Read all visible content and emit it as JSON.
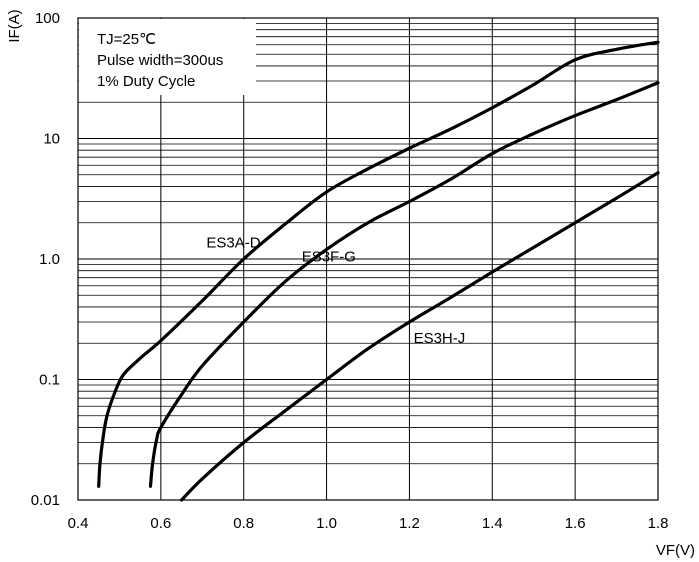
{
  "chart_data": {
    "type": "line",
    "title": "",
    "xlabel": "VF(V)",
    "ylabel": "IF(A)",
    "x_scale": "linear",
    "y_scale": "log",
    "xlim": [
      0.4,
      1.8
    ],
    "ylim": [
      0.01,
      100
    ],
    "x_ticks": [
      "0.4",
      "0.6",
      "0.8",
      "1.0",
      "1.2",
      "1.4",
      "1.6",
      "1.8"
    ],
    "y_ticks": [
      "0.01",
      "0.1",
      "1.0",
      "10",
      "100"
    ],
    "grid": true,
    "annotations": [
      "TJ=25℃",
      "Pulse width=300us",
      "1% Duty Cycle"
    ],
    "series": [
      {
        "name": "ES3A-D",
        "x": [
          0.45,
          0.453,
          0.46,
          0.47,
          0.49,
          0.51,
          0.55,
          0.6,
          0.7,
          0.8,
          0.9,
          1.0,
          1.1,
          1.2,
          1.3,
          1.4,
          1.5,
          1.6,
          1.7,
          1.8
        ],
        "y": [
          0.013,
          0.02,
          0.032,
          0.05,
          0.08,
          0.11,
          0.15,
          0.21,
          0.45,
          1.0,
          1.95,
          3.6,
          5.6,
          8.3,
          12,
          18,
          28,
          45,
          55,
          63
        ]
      },
      {
        "name": "ES3F-G",
        "x": [
          0.575,
          0.58,
          0.59,
          0.6,
          0.65,
          0.7,
          0.8,
          0.9,
          1.0,
          1.1,
          1.2,
          1.3,
          1.4,
          1.5,
          1.6,
          1.7,
          1.8
        ],
        "y": [
          0.013,
          0.02,
          0.032,
          0.04,
          0.075,
          0.13,
          0.3,
          0.65,
          1.2,
          2.0,
          3.0,
          4.6,
          7.5,
          11,
          15.5,
          21,
          29
        ]
      },
      {
        "name": "ES3H-J",
        "x": [
          0.65,
          0.7,
          0.8,
          0.9,
          1.0,
          1.1,
          1.2,
          1.3,
          1.4,
          1.5,
          1.6,
          1.7,
          1.8
        ],
        "y": [
          0.01,
          0.015,
          0.03,
          0.055,
          0.1,
          0.18,
          0.3,
          0.48,
          0.78,
          1.25,
          2.0,
          3.2,
          5.2
        ]
      }
    ]
  }
}
